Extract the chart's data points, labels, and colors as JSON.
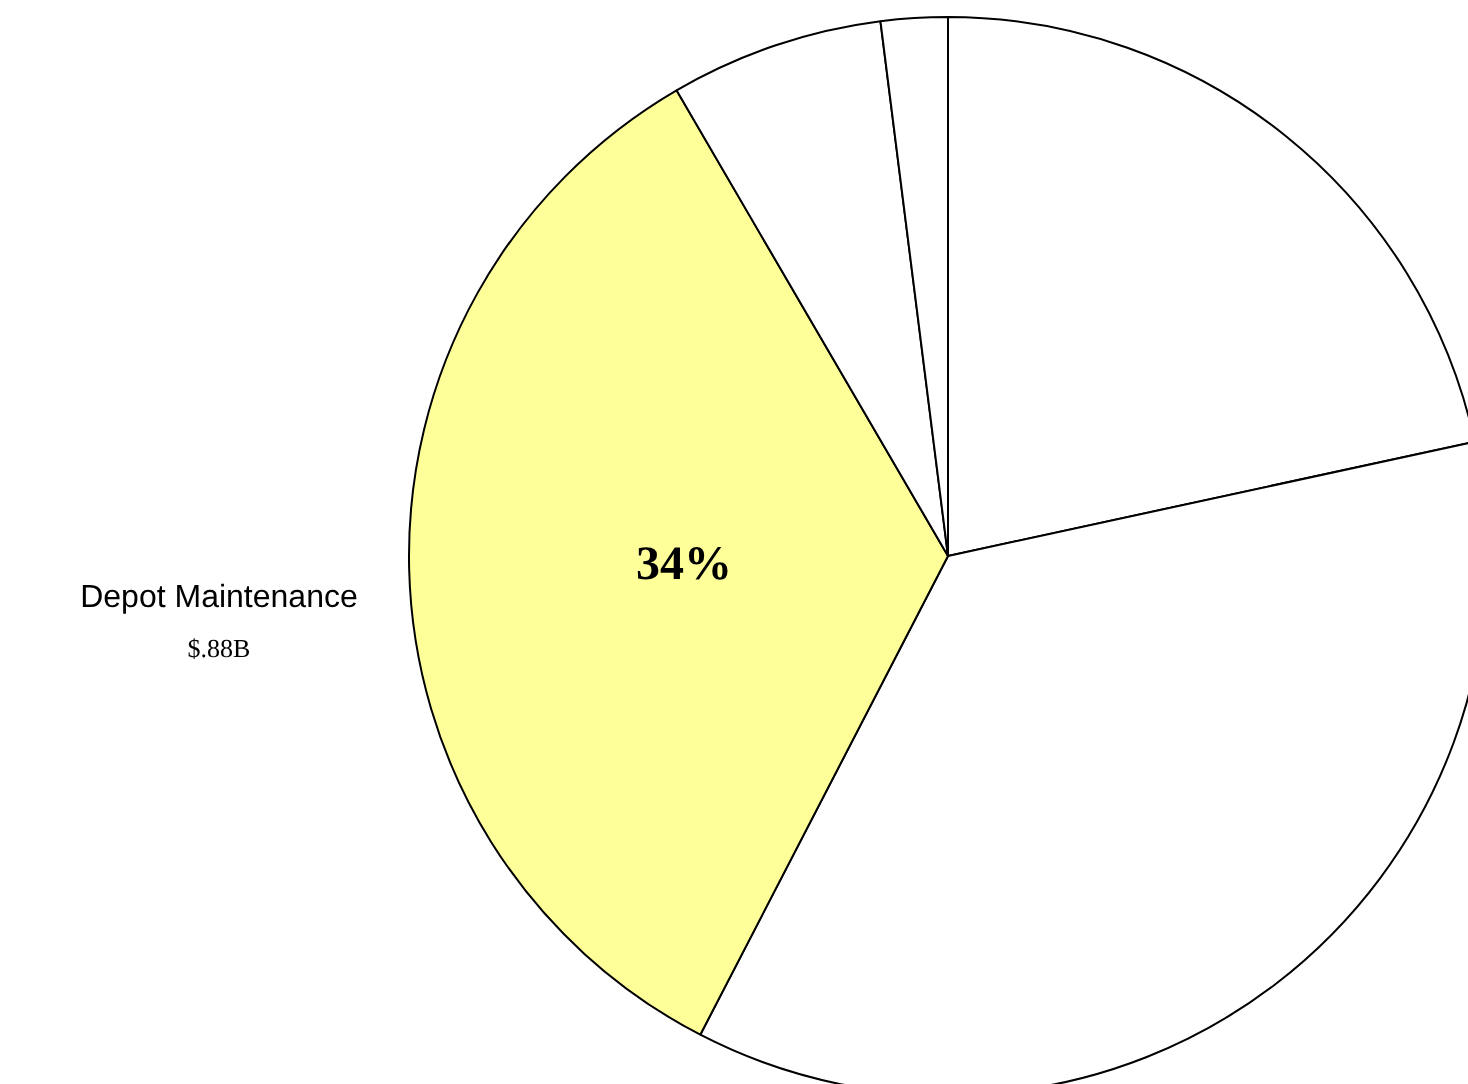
{
  "chart_data": {
    "type": "pie",
    "categories": [
      null,
      null,
      "Depot Maintenance",
      null,
      null
    ],
    "values": [
      21.6,
      36,
      34,
      6.4,
      2
    ],
    "colors": [
      "#ffffff",
      "#ffffff",
      "#ffff99",
      "#ffffff",
      "#ffffff"
    ],
    "value_labels": [
      null,
      null,
      "34%",
      null,
      null
    ],
    "annotations": [
      "$.88B"
    ]
  }
}
